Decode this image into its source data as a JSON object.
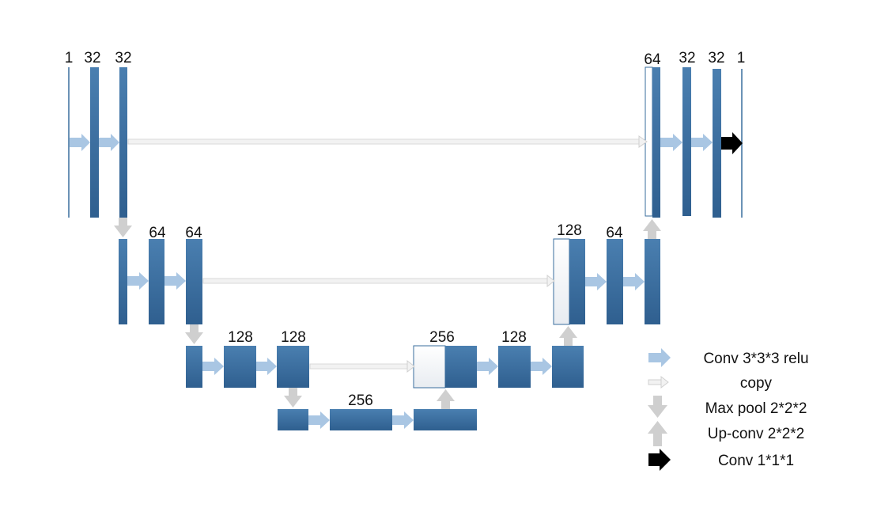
{
  "colors": {
    "block_top": "#4a7fb0",
    "block_bottom": "#2f5f8f",
    "conv_arrow": "#a9c6e3",
    "copy_arrow": "#e6e6e6",
    "pool_arrow": "#cfcfcf",
    "upconv_arrow": "#cfcfcf",
    "final_arrow": "#000000"
  },
  "labels": {
    "l1_in": "1",
    "l1_c1": "32",
    "l1_c2": "32",
    "l2_c1": "64",
    "l2_c2": "64",
    "l3_c1": "128",
    "l3_c2": "128",
    "l4_c1": "256",
    "up3_concat": "256",
    "up3_c": "128",
    "up2_concat": "128",
    "up2_c": "64",
    "up1_concat": "64",
    "up1_c1": "32",
    "up1_c2": "32",
    "out": "1"
  },
  "legend": {
    "conv": "Conv 3*3*3 relu",
    "copy": "copy",
    "pool": "Max pool 2*2*2",
    "upconv": "Up-conv 2*2*2",
    "final": "Conv 1*1*1"
  }
}
